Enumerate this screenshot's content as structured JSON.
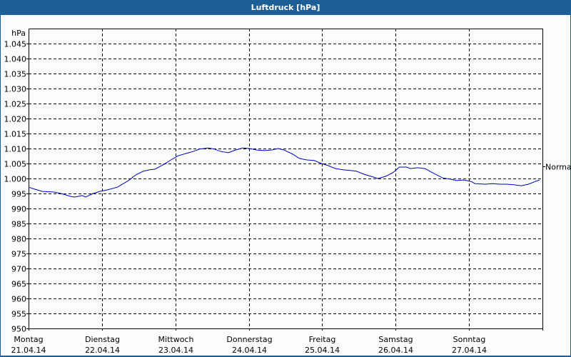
{
  "window": {
    "title": "Luftdruck [hPa]"
  },
  "chart_data": {
    "type": "line",
    "title": "Luftdruck [hPa]",
    "ylabel": "hPa",
    "xlabel": "",
    "ylim": [
      950,
      1050
    ],
    "y_ticks": [
      "1.045",
      "1.040",
      "1.035",
      "1.030",
      "1.025",
      "1.020",
      "1.015",
      "1.010",
      "1.005",
      "1.000",
      "995",
      "990",
      "985",
      "980",
      "975",
      "970",
      "965",
      "960",
      "955",
      "950"
    ],
    "x_ticks": [
      {
        "day": "Montag",
        "date": "21.04.14"
      },
      {
        "day": "Dienstag",
        "date": "22.04.14"
      },
      {
        "day": "Mittwoch",
        "date": "23.04.14"
      },
      {
        "day": "Donnerstag",
        "date": "24.04.14"
      },
      {
        "day": "Freitag",
        "date": "25.04.14"
      },
      {
        "day": "Samstag",
        "date": "26.04.14"
      },
      {
        "day": "Sonntag",
        "date": "27.04.14"
      }
    ],
    "grid": true,
    "annotation": {
      "label": "Normal",
      "value": 1004
    },
    "series": [
      {
        "name": "Luftdruck",
        "color": "#0000c0",
        "x_days": [
          0.0,
          0.09,
          0.19,
          0.34,
          0.44,
          0.58,
          0.63,
          0.73,
          0.78,
          0.88,
          0.97,
          1.07,
          1.21,
          1.36,
          1.46,
          1.56,
          1.65,
          1.72,
          1.85,
          1.94,
          2.04,
          2.14,
          2.24,
          2.33,
          2.45,
          2.53,
          2.62,
          2.72,
          2.82,
          2.92,
          3.01,
          3.11,
          3.21,
          3.31,
          3.4,
          3.48,
          3.6,
          3.69,
          3.79,
          3.89,
          3.99,
          4.08,
          4.18,
          4.28,
          4.42,
          4.47,
          4.57,
          4.67,
          4.76,
          4.86,
          4.96,
          5.01,
          5.05,
          5.15,
          5.2,
          5.3,
          5.4,
          5.49,
          5.64,
          5.74,
          5.83,
          5.93,
          6.03,
          6.08,
          6.22,
          6.32,
          6.42,
          6.51,
          6.61,
          6.71,
          6.81,
          6.9,
          6.96
        ],
        "values": [
          997.1,
          996.4,
          995.7,
          995.5,
          995.0,
          994.0,
          993.8,
          994.3,
          993.8,
          995.0,
          995.7,
          996.2,
          997.1,
          999.3,
          1001.2,
          1002.4,
          1002.9,
          1003.1,
          1004.8,
          1006.2,
          1007.6,
          1008.3,
          1009.0,
          1009.8,
          1010.2,
          1009.8,
          1009.0,
          1008.6,
          1009.5,
          1010.2,
          1010.0,
          1009.5,
          1009.3,
          1009.5,
          1010.0,
          1009.5,
          1008.1,
          1006.7,
          1006.2,
          1006.0,
          1005.0,
          1004.3,
          1003.3,
          1002.9,
          1002.6,
          1002.4,
          1001.4,
          1000.7,
          1000.0,
          1000.7,
          1001.9,
          1002.9,
          1003.8,
          1003.8,
          1003.3,
          1003.6,
          1003.3,
          1002.1,
          1000.2,
          999.8,
          999.3,
          999.5,
          999.0,
          998.3,
          998.1,
          998.3,
          998.1,
          998.1,
          997.9,
          997.6,
          998.1,
          999.0,
          999.5
        ]
      }
    ]
  }
}
